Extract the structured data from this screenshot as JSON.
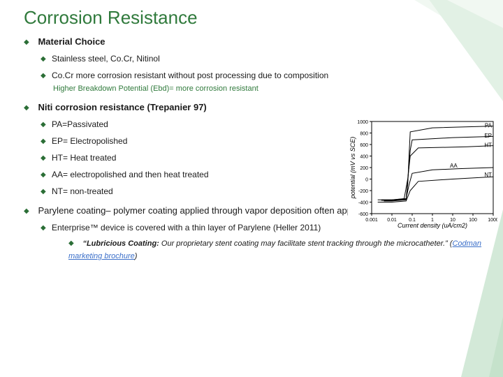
{
  "title": "Corrosion Resistance",
  "sections": {
    "material_choice": {
      "heading": "Material Choice",
      "items": [
        "Stainless steel, Co.Cr, Nitinol",
        "Co.Cr more corrosion resistant without post processing due to composition"
      ],
      "note": "Higher Breakdown Potential (Ebd)= more corrosion resistant"
    },
    "niti": {
      "heading": "Niti corrosion resistance (Trepanier 97)",
      "items": [
        "PA=Passivated",
        "EP= Electropolished",
        "HT= Heat treated",
        "AA= electropolished and then heat treated",
        "NT= non-treated"
      ]
    },
    "parylene": {
      "heading": "Parylene coating– polymer coating applied through vapor deposition often applied for corrosion resistance",
      "enterprise": "Enterprise™ device is covered with a thin layer of Parylene (Heller 2011)",
      "quote_label": "“Lubricious Coating:",
      "quote_rest": " Our proprietary stent coating may facilitate stent tracking through the microcatheter.” (",
      "link_text": "Codman marketing brochure",
      "quote_close": ")"
    }
  },
  "chart": {
    "type": "line",
    "xlabel": "Current density (uA/cm2)",
    "ylabel": "potential (mV vs SCE)",
    "xscale": "log",
    "xlim": [
      0.001,
      1000
    ],
    "ylim": [
      -600,
      1000
    ],
    "ytick_step": 200,
    "xticks": [
      0.001,
      0.01,
      0.1,
      1,
      10,
      100,
      1000
    ],
    "background_color": "#ffffff",
    "axis_color": "#000000",
    "line_color": "#000000",
    "label_fontsize": 9,
    "tick_fontsize": 7,
    "series": [
      {
        "name": "PA",
        "label_x": 1000,
        "label_y": 900,
        "points": [
          [
            0.004,
            -380
          ],
          [
            0.01,
            -380
          ],
          [
            0.05,
            -360
          ],
          [
            0.06,
            -100
          ],
          [
            0.07,
            400
          ],
          [
            0.08,
            820
          ],
          [
            1,
            890
          ],
          [
            1000,
            920
          ]
        ]
      },
      {
        "name": "EP",
        "label_x": 1000,
        "label_y": 720,
        "points": [
          [
            0.003,
            -370
          ],
          [
            0.01,
            -370
          ],
          [
            0.05,
            -350
          ],
          [
            0.06,
            -50
          ],
          [
            0.08,
            500
          ],
          [
            0.1,
            680
          ],
          [
            10,
            720
          ],
          [
            1000,
            740
          ]
        ]
      },
      {
        "name": "HT",
        "label_x": 1000,
        "label_y": 560,
        "points": [
          [
            0.003,
            -360
          ],
          [
            0.01,
            -360
          ],
          [
            0.04,
            -340
          ],
          [
            0.06,
            0
          ],
          [
            0.08,
            400
          ],
          [
            0.2,
            540
          ],
          [
            50,
            560
          ],
          [
            1000,
            580
          ]
        ]
      },
      {
        "name": "AA",
        "label_x": 20,
        "label_y": 200,
        "points": [
          [
            0.002,
            -360
          ],
          [
            0.01,
            -360
          ],
          [
            0.05,
            -340
          ],
          [
            0.07,
            -100
          ],
          [
            0.1,
            100
          ],
          [
            1,
            160
          ],
          [
            20,
            180
          ],
          [
            1000,
            200
          ]
        ]
      },
      {
        "name": "NT",
        "label_x": 1000,
        "label_y": 40,
        "points": [
          [
            0.002,
            -400
          ],
          [
            0.01,
            -400
          ],
          [
            0.05,
            -380
          ],
          [
            0.08,
            -200
          ],
          [
            0.2,
            -40
          ],
          [
            10,
            0
          ],
          [
            1000,
            40
          ]
        ]
      }
    ]
  },
  "decoration": {
    "colors": [
      "#e8f4ea",
      "#cfe8d4",
      "#b7dcbf",
      "#9fd0aa"
    ]
  }
}
